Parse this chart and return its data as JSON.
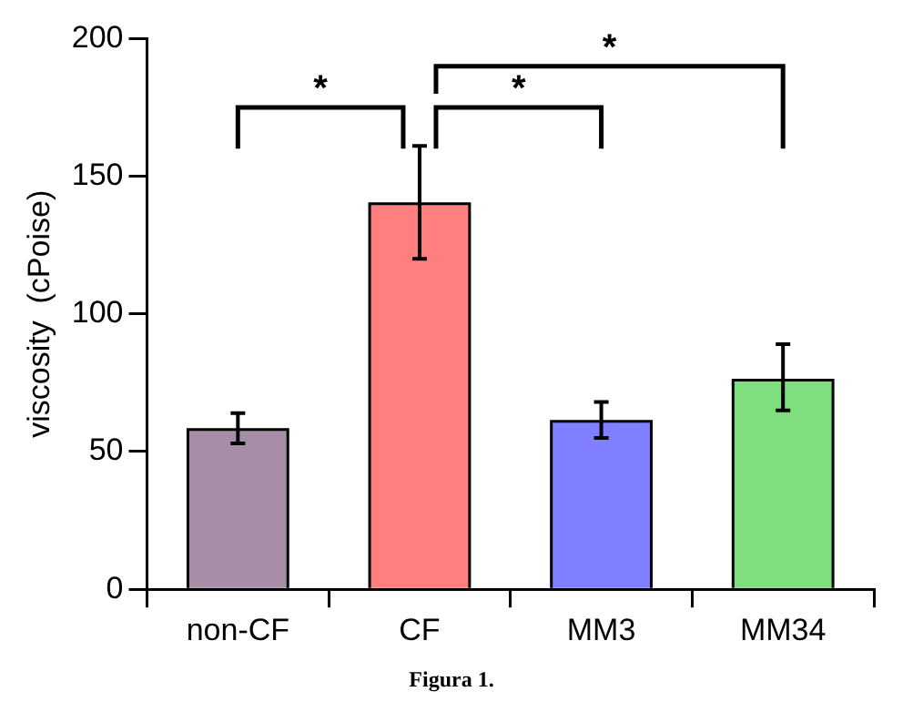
{
  "chart_data": {
    "type": "bar",
    "ylabel": "viscosity  (cPoise)",
    "categories": [
      "non-CF",
      "CF",
      "MM3",
      "MM34"
    ],
    "values": [
      58,
      140,
      61,
      76
    ],
    "errors": [
      [
        53,
        64
      ],
      [
        120,
        161
      ],
      [
        55,
        68
      ],
      [
        65,
        89
      ]
    ],
    "colors": [
      "#a68fa6",
      "#ff7f7f",
      "#7f7fff",
      "#7fdf7f"
    ],
    "ylim": [
      0,
      200
    ],
    "yticks": [
      0,
      50,
      100,
      150,
      200
    ],
    "grid": false,
    "legend": false,
    "annotations": [
      "*",
      "*",
      "*",
      "Figura 1."
    ]
  }
}
